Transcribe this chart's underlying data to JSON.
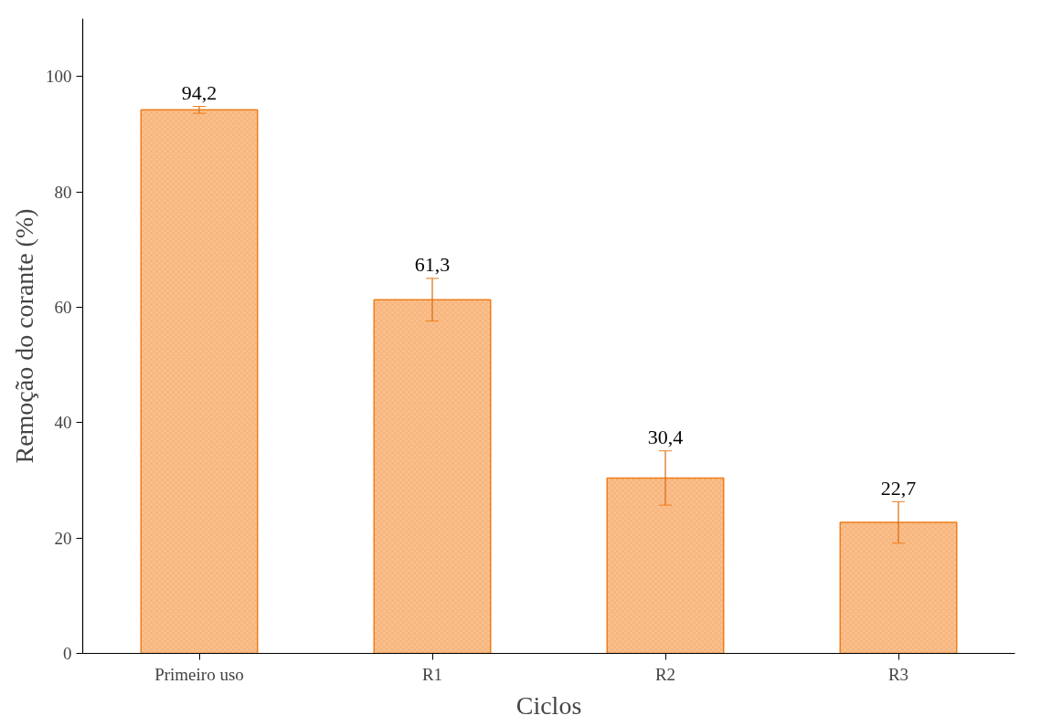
{
  "chart_data": {
    "type": "bar",
    "xlabel": "Ciclos",
    "ylabel": "Remoção do corante (%)",
    "categories": [
      "Primeiro uso",
      "R1",
      "R2",
      "R3"
    ],
    "values": [
      94.2,
      61.3,
      30.4,
      22.7
    ],
    "errors": [
      0.6,
      3.7,
      4.7,
      3.6
    ],
    "value_labels": [
      "94,2",
      "61,3",
      "30,4",
      "22,7"
    ],
    "color": "#f9c08c",
    "ylim": [
      0,
      110
    ],
    "yticks": [
      0,
      20,
      40,
      60,
      80,
      100
    ],
    "grid": false
  }
}
